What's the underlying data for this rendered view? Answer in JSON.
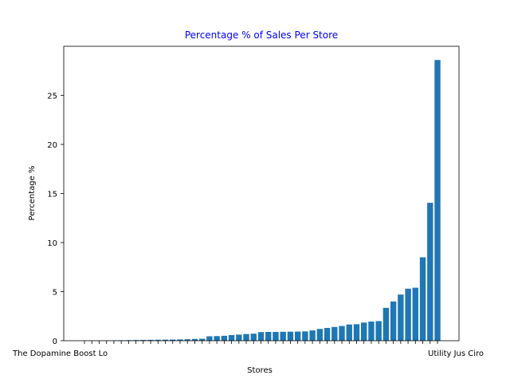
{
  "chart_data": {
    "type": "bar",
    "title": "Percentage % of Sales Per Store",
    "xlabel": "Stores",
    "ylabel": "Percentage %",
    "ylim": [
      0,
      30
    ],
    "yticks": [
      0,
      5,
      10,
      15,
      20,
      25
    ],
    "grid": false,
    "colors": {
      "bar": "#1f77b4",
      "title": "#0000ff",
      "axis": "#000000"
    },
    "visible_tick_text": {
      "first": "The Dopamine Boost Lo",
      "last": "Utility Jus Ciro"
    },
    "values": [
      0.02,
      0.02,
      0.02,
      0.03,
      0.03,
      0.05,
      0.06,
      0.07,
      0.08,
      0.09,
      0.1,
      0.11,
      0.12,
      0.13,
      0.15,
      0.18,
      0.2,
      0.45,
      0.47,
      0.5,
      0.58,
      0.62,
      0.68,
      0.72,
      0.88,
      0.9,
      0.9,
      0.91,
      0.92,
      0.93,
      0.95,
      1.05,
      1.2,
      1.3,
      1.4,
      1.5,
      1.65,
      1.68,
      1.85,
      1.95,
      2.0,
      3.35,
      4.0,
      4.7,
      5.3,
      5.4,
      8.5,
      14.05,
      28.6
    ]
  }
}
